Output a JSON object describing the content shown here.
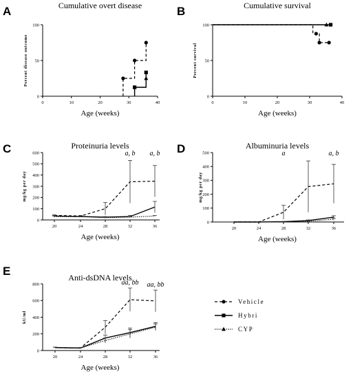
{
  "chart_data": [
    {
      "id": "A",
      "panel_label": "A",
      "type": "line",
      "step": true,
      "title": "Cumulative overt disease",
      "xlabel": "Age (weeks)",
      "ylabel": "Percent disease outcome",
      "xlim": [
        0,
        40
      ],
      "ylim": [
        0,
        100
      ],
      "xticks": [
        "0",
        "10",
        "20",
        "30",
        "40"
      ],
      "yticks": [
        "0",
        "50",
        "100"
      ],
      "series": [
        {
          "name": "Vehicle",
          "style": "dashed",
          "marker": "circle",
          "x": [
            28,
            32,
            36
          ],
          "y": [
            25,
            50,
            75
          ]
        },
        {
          "name": "Hybri",
          "style": "solid",
          "marker": "square",
          "x": [
            32,
            36
          ],
          "y": [
            12.5,
            33.3
          ]
        },
        {
          "name": "CYP",
          "style": "dotted",
          "marker": "triangle",
          "x": [
            32,
            36
          ],
          "y": [
            12.5,
            25
          ]
        }
      ]
    },
    {
      "id": "B",
      "panel_label": "B",
      "type": "line",
      "step": true,
      "title": "Cumulative survival",
      "xlabel": "Age (weeks)",
      "ylabel": "Percent survival",
      "xlim": [
        0,
        40
      ],
      "ylim": [
        0,
        100
      ],
      "xticks": [
        "0",
        "10",
        "20",
        "30",
        "40"
      ],
      "yticks": [
        "0",
        "50",
        "100"
      ],
      "series": [
        {
          "name": "Vehicle",
          "style": "dashed",
          "marker": "circle",
          "x": [
            0,
            31,
            31,
            33,
            33,
            36
          ],
          "y": [
            100,
            100,
            87.5,
            87.5,
            75,
            75
          ],
          "marker_points": [
            [
              32,
              87.5
            ],
            [
              33,
              75
            ],
            [
              36,
              75
            ]
          ]
        },
        {
          "name": "Hybri",
          "style": "solid",
          "marker": "square",
          "x": [
            0,
            36.5
          ],
          "y": [
            100,
            100
          ],
          "marker_points": [
            [
              36.5,
              100
            ]
          ]
        },
        {
          "name": "CYP",
          "style": "dotted",
          "marker": "triangle",
          "x": [
            0,
            35.2
          ],
          "y": [
            100,
            100
          ],
          "marker_points": [
            [
              35.2,
              100
            ]
          ]
        }
      ]
    },
    {
      "id": "C",
      "panel_label": "C",
      "type": "line",
      "title": "Proteinuria levels",
      "xlabel": "Age (weeks)",
      "ylabel": "mg/kg per day",
      "ylim": [
        0,
        600
      ],
      "categories": [
        "20",
        "24",
        "28",
        "32",
        "36"
      ],
      "yticks": [
        "0",
        "100",
        "200",
        "300",
        "400",
        "500",
        "600"
      ],
      "annotations": [
        {
          "x": "32",
          "text": "a, b"
        },
        {
          "x": "36",
          "text": "a, b"
        }
      ],
      "series": [
        {
          "name": "Vehicle",
          "style": "dashed",
          "values": [
            40,
            35,
            100,
            340,
            345
          ],
          "err": [
            5,
            5,
            55,
            190,
            140
          ]
        },
        {
          "name": "Hybri",
          "style": "solid",
          "values": [
            35,
            30,
            25,
            30,
            115
          ],
          "err": [
            5,
            5,
            5,
            10,
            50
          ]
        },
        {
          "name": "CYP",
          "style": "dotted",
          "values": [
            30,
            30,
            20,
            25,
            35
          ],
          "err": [
            5,
            5,
            5,
            5,
            5
          ]
        }
      ]
    },
    {
      "id": "D",
      "panel_label": "D",
      "type": "line",
      "title": "Albuminuria levels",
      "xlabel": "Age (weeks)",
      "ylabel": "mg/kg per day",
      "ylim": [
        0,
        500
      ],
      "categories": [
        "20",
        "24",
        "28",
        "32",
        "36"
      ],
      "yticks": [
        "0",
        "100",
        "200",
        "300",
        "400",
        "500"
      ],
      "annotations": [
        {
          "x": "28",
          "text": "a"
        },
        {
          "x": "36",
          "text": "a, b"
        }
      ],
      "series": [
        {
          "name": "Vehicle",
          "style": "dashed",
          "values": [
            0,
            0,
            70,
            255,
            275
          ],
          "err": [
            0,
            0,
            50,
            185,
            140
          ]
        },
        {
          "name": "Hybri",
          "style": "solid",
          "values": [
            0,
            0,
            2,
            10,
            35
          ],
          "err": [
            0,
            0,
            2,
            5,
            10
          ]
        },
        {
          "name": "CYP",
          "style": "dotted",
          "values": [
            0,
            0,
            2,
            5,
            20
          ],
          "err": [
            0,
            0,
            2,
            3,
            8
          ]
        }
      ]
    },
    {
      "id": "E",
      "panel_label": "E",
      "type": "line",
      "title": "Anti-dsDNA levels",
      "xlabel": "Age (weeks)",
      "ylabel": "kU/ml",
      "ylim": [
        0,
        800
      ],
      "categories": [
        "20",
        "24",
        "28",
        "32",
        "36"
      ],
      "yticks": [
        "0",
        "200",
        "400",
        "600",
        "800"
      ],
      "annotations": [
        {
          "x": "32",
          "text": "aa, bb"
        },
        {
          "x": "36",
          "text": "aa, bb"
        }
      ],
      "series": [
        {
          "name": "Vehicle",
          "style": "dashed",
          "values": [
            35,
            30,
            280,
            610,
            595
          ],
          "err": [
            5,
            5,
            80,
            140,
            130
          ]
        },
        {
          "name": "Hybri",
          "style": "solid",
          "values": [
            35,
            30,
            150,
            215,
            290
          ],
          "err": [
            5,
            5,
            35,
            55,
            45
          ]
        },
        {
          "name": "CYP",
          "style": "dotted",
          "values": [
            35,
            30,
            120,
            200,
            280
          ],
          "err": [
            5,
            5,
            30,
            50,
            40
          ]
        }
      ]
    }
  ],
  "legend": {
    "items": [
      {
        "label": "Vehicle",
        "style": "dashed",
        "marker": "circle"
      },
      {
        "label": "Hybri",
        "style": "solid",
        "marker": "square"
      },
      {
        "label": "CYP",
        "style": "dotted",
        "marker": "triangle"
      }
    ]
  }
}
